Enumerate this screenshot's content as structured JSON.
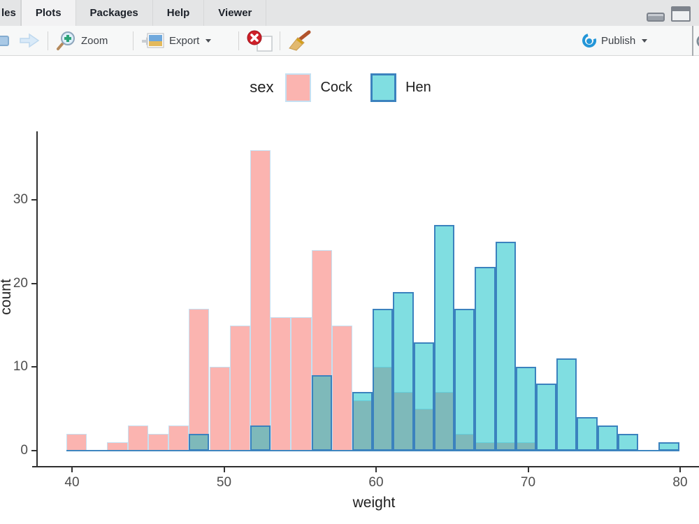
{
  "tabs": {
    "files_partial": "les",
    "plots": "Plots",
    "packages": "Packages",
    "help": "Help",
    "viewer": "Viewer"
  },
  "toolbar": {
    "zoom_label": "Zoom",
    "export_label": "Export",
    "publish_label": "Publish"
  },
  "chart_data": {
    "type": "bar",
    "subtype": "overlaid-histogram",
    "xlabel": "weight",
    "ylabel": "count",
    "legend_title": "sex",
    "legend_position": "top",
    "grid": false,
    "x_ticks": [
      40,
      50,
      60,
      70,
      80
    ],
    "y_ticks": [
      0,
      10,
      20,
      30
    ],
    "xlim": [
      37.6,
      81.3
    ],
    "ylim": [
      0,
      38
    ],
    "bins": {
      "start": 39.63,
      "width": 1.3435,
      "n": 30
    },
    "series": [
      {
        "name": "Cock",
        "fill": "#fbb4b0",
        "border": "#c5e0f2",
        "total": 200,
        "counts": [
          2,
          0,
          1,
          3,
          2,
          3,
          17,
          10,
          15,
          36,
          16,
          16,
          24,
          15,
          6,
          10,
          7,
          5,
          7,
          2,
          1,
          1,
          1,
          0,
          0,
          0,
          0,
          0,
          0,
          0
        ]
      },
      {
        "name": "Hen",
        "fill": "rgba(2,189,196,0.5)",
        "solid_fill": "#80dee1",
        "border": "#3b82be",
        "total": 200,
        "counts": [
          0,
          0,
          0,
          0,
          0,
          0,
          2,
          0,
          0,
          3,
          0,
          0,
          9,
          0,
          7,
          17,
          19,
          13,
          27,
          17,
          22,
          25,
          10,
          8,
          11,
          4,
          3,
          2,
          0,
          1
        ]
      }
    ]
  }
}
